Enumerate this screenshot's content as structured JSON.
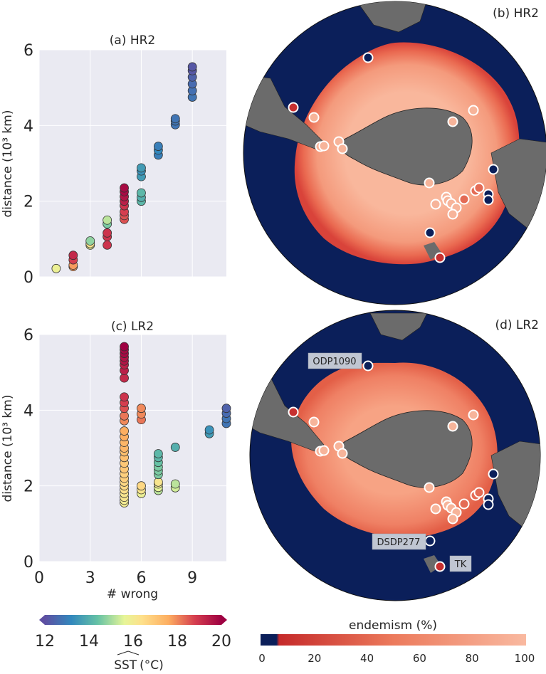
{
  "chart_data": [
    {
      "type": "scatter",
      "title": "(a) HR2",
      "xlabel": "",
      "ylabel": "distance (10³ km)",
      "xlim": [
        0,
        11
      ],
      "ylim": [
        0,
        6
      ],
      "xticks": [
        "0",
        "3",
        "6",
        "9"
      ],
      "yticks": [
        "0",
        "2",
        "4",
        "6"
      ],
      "points": [
        {
          "x": 1,
          "y": 0.22,
          "c": 15.8
        },
        {
          "x": 2,
          "y": 0.27,
          "c": 17.8
        },
        {
          "x": 2,
          "y": 0.31,
          "c": 17.8
        },
        {
          "x": 2,
          "y": 0.45,
          "c": 18.8
        },
        {
          "x": 2,
          "y": 0.57,
          "c": 19.2
        },
        {
          "x": 3,
          "y": 0.84,
          "c": 15.8
        },
        {
          "x": 3,
          "y": 0.88,
          "c": 16.2
        },
        {
          "x": 3,
          "y": 0.95,
          "c": 14.8
        },
        {
          "x": 4,
          "y": 0.84,
          "c": 19.0
        },
        {
          "x": 4,
          "y": 1.06,
          "c": 19.0
        },
        {
          "x": 4,
          "y": 1.16,
          "c": 19.0
        },
        {
          "x": 4,
          "y": 1.4,
          "c": 14.6
        },
        {
          "x": 4,
          "y": 1.5,
          "c": 15.2
        },
        {
          "x": 5,
          "y": 1.52,
          "c": 18.6
        },
        {
          "x": 5,
          "y": 1.62,
          "c": 18.6
        },
        {
          "x": 5,
          "y": 1.72,
          "c": 18.8
        },
        {
          "x": 5,
          "y": 1.88,
          "c": 19.0
        },
        {
          "x": 5,
          "y": 2.0,
          "c": 19.4
        },
        {
          "x": 5,
          "y": 2.12,
          "c": 19.6
        },
        {
          "x": 5,
          "y": 2.25,
          "c": 19.8
        },
        {
          "x": 5,
          "y": 2.35,
          "c": 19.8
        },
        {
          "x": 6,
          "y": 2.0,
          "c": 14.2
        },
        {
          "x": 6,
          "y": 2.1,
          "c": 14.0
        },
        {
          "x": 6,
          "y": 2.22,
          "c": 14.2
        },
        {
          "x": 6,
          "y": 2.65,
          "c": 13.6
        },
        {
          "x": 6,
          "y": 2.8,
          "c": 13.4
        },
        {
          "x": 6,
          "y": 2.88,
          "c": 13.6
        },
        {
          "x": 7,
          "y": 3.22,
          "c": 13.0
        },
        {
          "x": 7,
          "y": 3.35,
          "c": 13.2
        },
        {
          "x": 7,
          "y": 3.45,
          "c": 13.0
        },
        {
          "x": 8,
          "y": 4.02,
          "c": 12.8
        },
        {
          "x": 8,
          "y": 4.12,
          "c": 12.8
        },
        {
          "x": 8,
          "y": 4.18,
          "c": 12.8
        },
        {
          "x": 9,
          "y": 4.75,
          "c": 12.8
        },
        {
          "x": 9,
          "y": 4.92,
          "c": 12.7
        },
        {
          "x": 9,
          "y": 5.1,
          "c": 12.6
        },
        {
          "x": 9,
          "y": 5.28,
          "c": 12.4
        },
        {
          "x": 9,
          "y": 5.45,
          "c": 12.2
        },
        {
          "x": 9,
          "y": 5.55,
          "c": 12.2
        }
      ]
    },
    {
      "type": "scatter",
      "title": "(c) LR2",
      "xlabel": "# wrong",
      "ylabel": "distance (10³ km)",
      "xlim": [
        0,
        11
      ],
      "ylim": [
        0,
        6
      ],
      "xticks": [
        "0",
        "3",
        "6",
        "9"
      ],
      "yticks": [
        "0",
        "2",
        "4",
        "6"
      ],
      "points": [
        {
          "x": 5,
          "y": 1.55,
          "c": 16.0
        },
        {
          "x": 5,
          "y": 1.62,
          "c": 16.0
        },
        {
          "x": 5,
          "y": 1.7,
          "c": 16.2
        },
        {
          "x": 5,
          "y": 1.8,
          "c": 16.2
        },
        {
          "x": 5,
          "y": 1.9,
          "c": 16.4
        },
        {
          "x": 5,
          "y": 2.0,
          "c": 16.6
        },
        {
          "x": 5,
          "y": 2.1,
          "c": 16.6
        },
        {
          "x": 5,
          "y": 2.2,
          "c": 16.8
        },
        {
          "x": 5,
          "y": 2.32,
          "c": 16.8
        },
        {
          "x": 5,
          "y": 2.45,
          "c": 17.0
        },
        {
          "x": 5,
          "y": 2.6,
          "c": 17.0
        },
        {
          "x": 5,
          "y": 2.75,
          "c": 17.2
        },
        {
          "x": 5,
          "y": 2.9,
          "c": 17.2
        },
        {
          "x": 5,
          "y": 3.0,
          "c": 17.4
        },
        {
          "x": 5,
          "y": 3.15,
          "c": 17.4
        },
        {
          "x": 5,
          "y": 3.3,
          "c": 17.6
        },
        {
          "x": 5,
          "y": 3.45,
          "c": 17.6
        },
        {
          "x": 5,
          "y": 3.72,
          "c": 18.0
        },
        {
          "x": 5,
          "y": 3.85,
          "c": 18.2
        },
        {
          "x": 5,
          "y": 4.05,
          "c": 18.6
        },
        {
          "x": 5,
          "y": 4.2,
          "c": 18.8
        },
        {
          "x": 5,
          "y": 4.35,
          "c": 19.0
        },
        {
          "x": 5,
          "y": 4.85,
          "c": 19.2
        },
        {
          "x": 5,
          "y": 5.05,
          "c": 19.4
        },
        {
          "x": 5,
          "y": 5.2,
          "c": 19.4
        },
        {
          "x": 5,
          "y": 5.3,
          "c": 19.6
        },
        {
          "x": 5,
          "y": 5.4,
          "c": 19.6
        },
        {
          "x": 5,
          "y": 5.5,
          "c": 19.8
        },
        {
          "x": 5,
          "y": 5.6,
          "c": 19.8
        },
        {
          "x": 5,
          "y": 5.68,
          "c": 20.0
        },
        {
          "x": 6,
          "y": 1.8,
          "c": 15.8
        },
        {
          "x": 6,
          "y": 1.9,
          "c": 16.2
        },
        {
          "x": 6,
          "y": 2.0,
          "c": 16.6
        },
        {
          "x": 6,
          "y": 3.75,
          "c": 18.2
        },
        {
          "x": 6,
          "y": 3.9,
          "c": 18.0
        },
        {
          "x": 6,
          "y": 4.05,
          "c": 18.0
        },
        {
          "x": 7,
          "y": 1.88,
          "c": 15.2
        },
        {
          "x": 7,
          "y": 1.96,
          "c": 15.6
        },
        {
          "x": 7,
          "y": 2.05,
          "c": 16.0
        },
        {
          "x": 7,
          "y": 2.1,
          "c": 16.2
        },
        {
          "x": 7,
          "y": 2.3,
          "c": 14.6
        },
        {
          "x": 7,
          "y": 2.4,
          "c": 14.6
        },
        {
          "x": 7,
          "y": 2.5,
          "c": 14.6
        },
        {
          "x": 7,
          "y": 2.62,
          "c": 14.4
        },
        {
          "x": 7,
          "y": 2.75,
          "c": 14.2
        },
        {
          "x": 7,
          "y": 2.85,
          "c": 14.2
        },
        {
          "x": 8,
          "y": 1.95,
          "c": 15.4
        },
        {
          "x": 8,
          "y": 2.05,
          "c": 15.2
        },
        {
          "x": 8,
          "y": 3.02,
          "c": 14.0
        },
        {
          "x": 10,
          "y": 3.38,
          "c": 13.6
        },
        {
          "x": 10,
          "y": 3.48,
          "c": 13.4
        },
        {
          "x": 11,
          "y": 3.65,
          "c": 12.8
        },
        {
          "x": 11,
          "y": 3.78,
          "c": 12.8
        },
        {
          "x": 11,
          "y": 3.92,
          "c": 12.6
        },
        {
          "x": 11,
          "y": 4.05,
          "c": 12.4
        }
      ]
    },
    {
      "type": "heatmap",
      "title": "(b) HR2",
      "description_field": "map"
    },
    {
      "type": "heatmap",
      "title": "(d) LR2",
      "site_labels": [
        "ODP1090",
        "DSDP277",
        "TK"
      ]
    }
  ],
  "colorbars": {
    "sst": {
      "label_math": "SST",
      "unit": "(°C)",
      "ticks": [
        "12",
        "14",
        "16",
        "18",
        "20"
      ],
      "range": [
        12,
        20
      ]
    },
    "endemism": {
      "label": "endemism (%)",
      "ticks": [
        "0",
        "20",
        "40",
        "60",
        "80",
        "100"
      ],
      "range": [
        0,
        100
      ]
    }
  },
  "colors": {
    "ocean": "#0b1f5a",
    "land": "#6b6b6b",
    "plot_bg": "#eaeaf2",
    "grid": "#ffffff"
  }
}
